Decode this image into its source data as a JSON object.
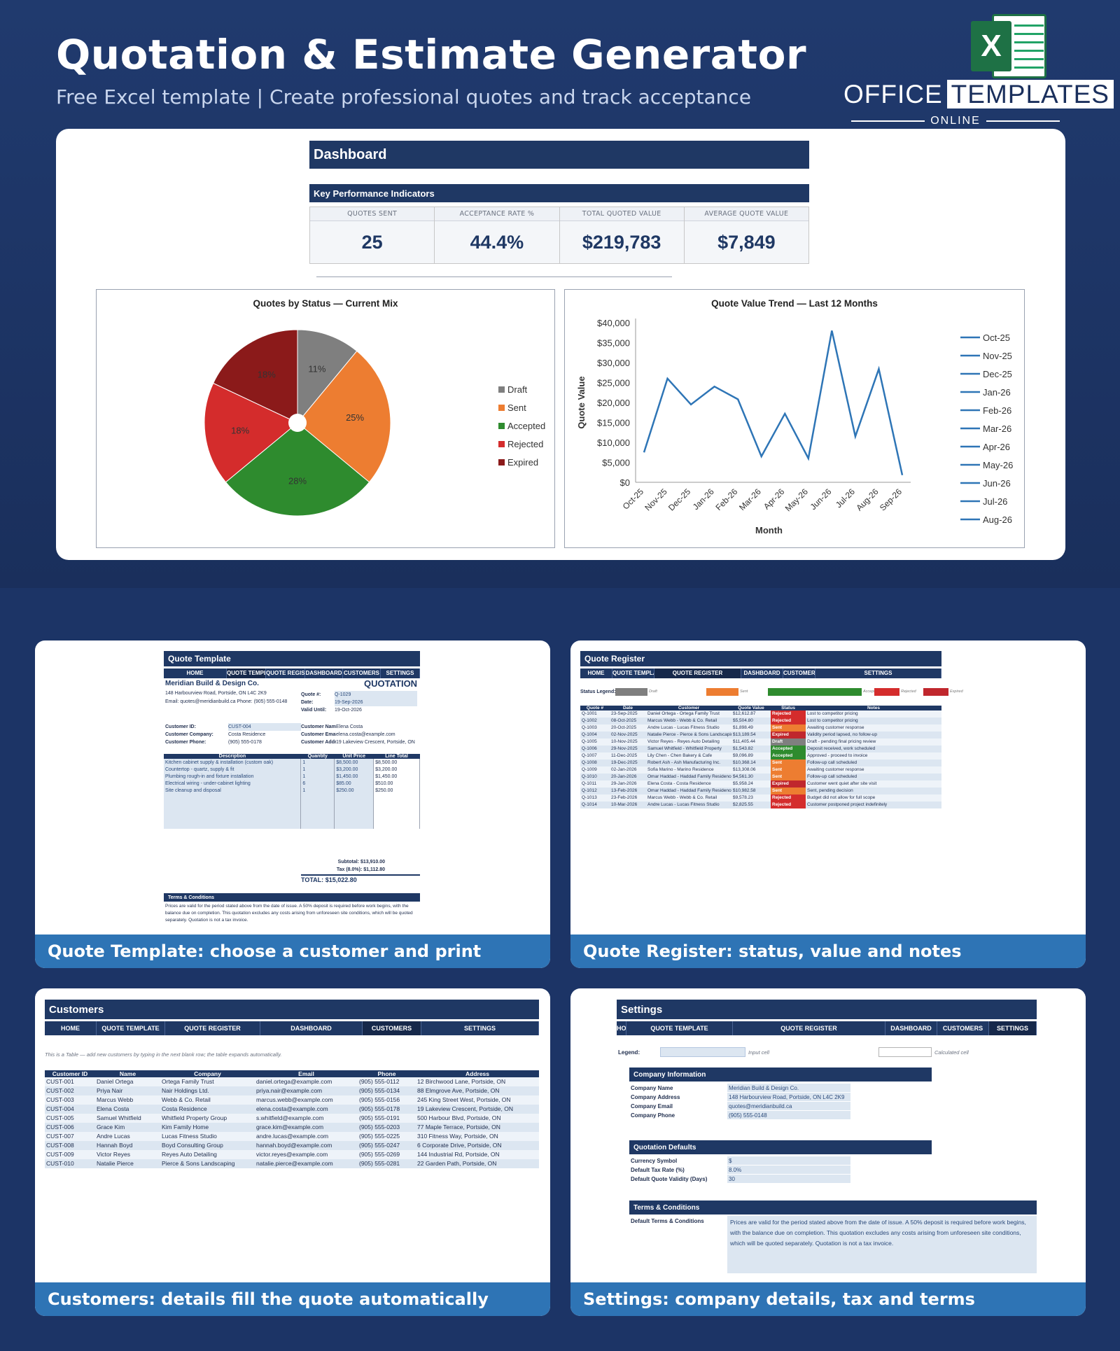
{
  "header": {
    "title": "Quotation & Estimate Generator",
    "subtitle": "Free Excel template  |  Create professional quotes and track acceptance",
    "logo": {
      "icon": "excel-icon",
      "brand_line1": "OFFICE",
      "brand_line2": "TEMPLATES",
      "brand_line3": "ONLINE"
    }
  },
  "dashboard": {
    "banner": "Dashboard",
    "kpi_title": "Key Performance Indicators",
    "kpis": [
      {
        "label": "QUOTES SENT",
        "value": "25"
      },
      {
        "label": "ACCEPTANCE RATE %",
        "value": "44.4%"
      },
      {
        "label": "TOTAL QUOTED VALUE",
        "value": "$219,783"
      },
      {
        "label": "AVERAGE QUOTE VALUE",
        "value": "$7,849"
      }
    ]
  },
  "chart_data": [
    {
      "type": "pie",
      "title": "Quotes by Status — Current Mix",
      "categories": [
        "Draft",
        "Sent",
        "Accepted",
        "Rejected",
        "Expired"
      ],
      "values": [
        11,
        25,
        28,
        18,
        18
      ],
      "labels": [
        "11%",
        "25%",
        "28%",
        "18%",
        "18%"
      ],
      "colors": [
        "#7f7f7f",
        "#ed7d31",
        "#2e8b2e",
        "#d42c2c",
        "#8b1a1a"
      ],
      "legend": "right"
    },
    {
      "type": "line",
      "title": "Quote Value Trend — Last 12 Months",
      "xlabel": "Month",
      "ylabel": "Quote Value",
      "x": [
        "Oct-25",
        "Nov-25",
        "Dec-25",
        "Jan-26",
        "Feb-26",
        "Mar-26",
        "Apr-26",
        "May-26",
        "Jun-26",
        "Jul-26",
        "Aug-26",
        "Sep-26"
      ],
      "values": [
        7500,
        26000,
        19500,
        24000,
        20800,
        6500,
        17200,
        6000,
        38000,
        11500,
        28400,
        1800
      ],
      "ylim": [
        0,
        40000
      ],
      "yticks": [
        "$0",
        "$5,000",
        "$10,000",
        "$15,000",
        "$20,000",
        "$25,000",
        "$30,000",
        "$35,000",
        "$40,000"
      ],
      "color": "#2e75b6",
      "legend": "right",
      "legend_entries": [
        "Oct-25",
        "Nov-25",
        "Dec-25",
        "Jan-26",
        "Feb-26",
        "Mar-26",
        "Apr-26",
        "May-26",
        "Jun-26",
        "Jul-26",
        "Aug-26"
      ]
    }
  ],
  "screens": {
    "quote_template": {
      "caption": "Quote Template: choose a customer and print",
      "banner": "Quote Template",
      "nav": [
        "HOME",
        "QUOTE TEMPLATE",
        "QUOTE REGISTER",
        "DASHBOARD",
        "CUSTOMERS",
        "SETTINGS"
      ],
      "company": "Meridian Build & Design Co.",
      "doc_type": "QUOTATION",
      "address": "148 Harbourview Road, Portside, ON L4C 2K9",
      "contact": "Email: quotes@meridianbuild.ca   Phone: (905) 555-0148",
      "meta": [
        {
          "label": "Quote #:",
          "value": "Q-1029"
        },
        {
          "label": "Date:",
          "value": "19-Sep-2026"
        },
        {
          "label": "Valid Until:",
          "value": "19-Oct-2026"
        }
      ],
      "customer_left": [
        {
          "label": "Customer ID:",
          "value": "CUST-004"
        },
        {
          "label": "Customer Company:",
          "value": "Costa Residence"
        },
        {
          "label": "Customer Phone:",
          "value": "(905) 555-0178"
        }
      ],
      "customer_right": [
        {
          "label": "Customer Name:",
          "value": "Elena Costa"
        },
        {
          "label": "Customer Email:",
          "value": "elena.costa@example.com"
        },
        {
          "label": "Customer Address:",
          "value": "19 Lakeview Crescent, Portside, ON"
        }
      ],
      "columns": [
        "Description",
        "Quantity",
        "Unit Price",
        "Line Total"
      ],
      "items": [
        [
          "Kitchen cabinet supply & installation (custom oak)",
          "1",
          "$8,500.00",
          "$8,500.00"
        ],
        [
          "Countertop - quartz, supply & fit",
          "1",
          "$3,200.00",
          "$3,200.00"
        ],
        [
          "Plumbing rough-in and fixture installation",
          "1",
          "$1,450.00",
          "$1,450.00"
        ],
        [
          "Electrical wiring - under-cabinet lighting",
          "6",
          "$85.00",
          "$510.00"
        ],
        [
          "Site cleanup and disposal",
          "1",
          "$250.00",
          "$250.00"
        ]
      ],
      "subtotal_label": "Subtotal:",
      "subtotal": "$13,910.00",
      "tax_label": "Tax (8.0%):",
      "tax": "$1,112.80",
      "total_label": "TOTAL:",
      "total": "$15,022.80",
      "terms_title": "Terms & Conditions",
      "terms": "Prices are valid for the period stated above from the date of issue. A 50% deposit is required before work begins, with the balance due on completion. This quotation excludes any costs arising from unforeseen site conditions, which will be quoted separately. Quotation is not a tax invoice."
    },
    "quote_register": {
      "caption": "Quote Register: status, value and notes",
      "banner": "Quote Register",
      "nav": [
        "HOME",
        "QUOTE TEMPLATE",
        "QUOTE REGISTER",
        "DASHBOARD",
        "CUSTOMERS",
        "SETTINGS"
      ],
      "legend_label": "Status Legend:",
      "legend": [
        {
          "name": "Draft",
          "color": "#7f7f7f"
        },
        {
          "name": "Sent",
          "color": "#ed7d31"
        },
        {
          "name": "Accepted",
          "color": "#2e8b2e"
        },
        {
          "name": "Rejected",
          "color": "#d42c2c"
        },
        {
          "name": "Expired",
          "color": "#c0272d"
        }
      ],
      "columns": [
        "Quote #",
        "Date",
        "Customer",
        "Quote Value",
        "Status",
        "Notes"
      ],
      "rows": [
        [
          "Q-1001",
          "23-Sep-2025",
          "Daniel Ortega - Ortega Family Trust",
          "$12,612.87",
          "Rejected",
          "Lost to competitor pricing"
        ],
        [
          "Q-1002",
          "08-Oct-2025",
          "Marcus Webb - Webb & Co. Retail",
          "$5,504.80",
          "Rejected",
          "Lost to competitor pricing"
        ],
        [
          "Q-1003",
          "20-Oct-2025",
          "Andre Lucas - Lucas Fitness Studio",
          "$1,898.49",
          "Sent",
          "Awaiting customer response"
        ],
        [
          "Q-1004",
          "02-Nov-2025",
          "Natalie Pierce - Pierce & Sons Landscaping",
          "$13,189.54",
          "Expired",
          "Validity period lapsed, no follow-up"
        ],
        [
          "Q-1005",
          "10-Nov-2025",
          "Victor Reyes - Reyes Auto Detailing",
          "$11,405.44",
          "Draft",
          "Draft - pending final pricing review"
        ],
        [
          "Q-1006",
          "29-Nov-2025",
          "Samuel Whitfield - Whitfield Property",
          "$1,543.82",
          "Accepted",
          "Deposit received, work scheduled"
        ],
        [
          "Q-1007",
          "11-Dec-2025",
          "Lily Chen - Chen Bakery & Cafe",
          "$9,096.89",
          "Accepted",
          "Approved - proceed to invoice"
        ],
        [
          "Q-1008",
          "19-Dec-2025",
          "Robert Ash - Ash Manufacturing Inc.",
          "$10,368.14",
          "Sent",
          "Follow-up call scheduled"
        ],
        [
          "Q-1009",
          "02-Jan-2026",
          "Sofia Marino - Marino Residence",
          "$13,308.06",
          "Sent",
          "Awaiting customer response"
        ],
        [
          "Q-1010",
          "20-Jan-2026",
          "Omar Haddad - Haddad Family Residence",
          "$4,561.30",
          "Sent",
          "Follow-up call scheduled"
        ],
        [
          "Q-1011",
          "29-Jan-2026",
          "Elena Costa - Costa Residence",
          "$5,958.24",
          "Expired",
          "Customer went quiet after site visit"
        ],
        [
          "Q-1012",
          "13-Feb-2026",
          "Omar Haddad - Haddad Family Residence",
          "$10,982.58",
          "Sent",
          "Sent, pending decision"
        ],
        [
          "Q-1013",
          "23-Feb-2026",
          "Marcus Webb - Webb & Co. Retail",
          "$9,578.23",
          "Rejected",
          "Budget did not allow for full scope"
        ],
        [
          "Q-1014",
          "10-Mar-2026",
          "Andre Lucas - Lucas Fitness Studio",
          "$2,825.55",
          "Rejected",
          "Customer postponed project indefinitely"
        ]
      ],
      "status_colors": {
        "Rejected": "#d42c2c",
        "Sent": "#ed7d31",
        "Expired": "#c0272d",
        "Draft": "#7f7f7f",
        "Accepted": "#2e8b2e"
      }
    },
    "customers": {
      "caption": "Customers: details fill the quote automatically",
      "banner": "Customers",
      "nav": [
        "HOME",
        "QUOTE TEMPLATE",
        "QUOTE REGISTER",
        "DASHBOARD",
        "CUSTOMERS",
        "SETTINGS"
      ],
      "note": "This is a Table — add new customers by typing in the next blank row; the table expands automatically.",
      "columns": [
        "Customer ID",
        "Name",
        "Company",
        "Email",
        "Phone",
        "Address"
      ],
      "rows": [
        [
          "CUST-001",
          "Daniel Ortega",
          "Ortega Family Trust",
          "daniel.ortega@example.com",
          "(905) 555-0112",
          "12 Birchwood Lane, Portside, ON"
        ],
        [
          "CUST-002",
          "Priya Nair",
          "Nair Holdings Ltd.",
          "priya.nair@example.com",
          "(905) 555-0134",
          "88 Elmgrove Ave, Portside, ON"
        ],
        [
          "CUST-003",
          "Marcus Webb",
          "Webb & Co. Retail",
          "marcus.webb@example.com",
          "(905) 555-0156",
          "245 King Street West, Portside, ON"
        ],
        [
          "CUST-004",
          "Elena Costa",
          "Costa Residence",
          "elena.costa@example.com",
          "(905) 555-0178",
          "19 Lakeview Crescent, Portside, ON"
        ],
        [
          "CUST-005",
          "Samuel Whitfield",
          "Whitfield Property Group",
          "s.whitfield@example.com",
          "(905) 555-0191",
          "500 Harbour Blvd, Portside, ON"
        ],
        [
          "CUST-006",
          "Grace Kim",
          "Kim Family Home",
          "grace.kim@example.com",
          "(905) 555-0203",
          "77 Maple Terrace, Portside, ON"
        ],
        [
          "CUST-007",
          "Andre Lucas",
          "Lucas Fitness Studio",
          "andre.lucas@example.com",
          "(905) 555-0225",
          "310 Fitness Way, Portside, ON"
        ],
        [
          "CUST-008",
          "Hannah Boyd",
          "Boyd Consulting Group",
          "hannah.boyd@example.com",
          "(905) 555-0247",
          "6 Corporate Drive, Portside, ON"
        ],
        [
          "CUST-009",
          "Victor Reyes",
          "Reyes Auto Detailing",
          "victor.reyes@example.com",
          "(905) 555-0269",
          "144 Industrial Rd, Portside, ON"
        ],
        [
          "CUST-010",
          "Natalie Pierce",
          "Pierce & Sons Landscaping",
          "natalie.pierce@example.com",
          "(905) 555-0281",
          "22 Garden Path, Portside, ON"
        ]
      ]
    },
    "settings": {
      "caption": "Settings: company details, tax and terms",
      "banner": "Settings",
      "nav": [
        "HOME",
        "QUOTE TEMPLATE",
        "QUOTE REGISTER",
        "DASHBOARD",
        "CUSTOMERS",
        "SETTINGS"
      ],
      "legend_label": "Legend:",
      "input_cell": "Input cell",
      "calc_cell": "Calculated cell",
      "company_title": "Company Information",
      "company": [
        {
          "label": "Company Name",
          "value": "Meridian Build & Design Co."
        },
        {
          "label": "Company Address",
          "value": "148 Harbourview Road, Portside, ON L4C 2K9"
        },
        {
          "label": "Company Email",
          "value": "quotes@meridianbuild.ca"
        },
        {
          "label": "Company Phone",
          "value": "(905) 555-0148"
        }
      ],
      "defaults_title": "Quotation Defaults",
      "defaults": [
        {
          "label": "Currency Symbol",
          "value": "$"
        },
        {
          "label": "Default Tax Rate (%)",
          "value": "8.0%"
        },
        {
          "label": "Default Quote Validity (Days)",
          "value": "30"
        }
      ],
      "terms_title": "Terms & Conditions",
      "terms_label": "Default Terms & Conditions",
      "terms": "Prices are valid for the period stated above from the date of issue. A 50% deposit is required before work begins, with the balance due on completion. This quotation excludes any costs arising from unforeseen site conditions, which will be quoted separately. Quotation is not a tax invoice."
    }
  }
}
